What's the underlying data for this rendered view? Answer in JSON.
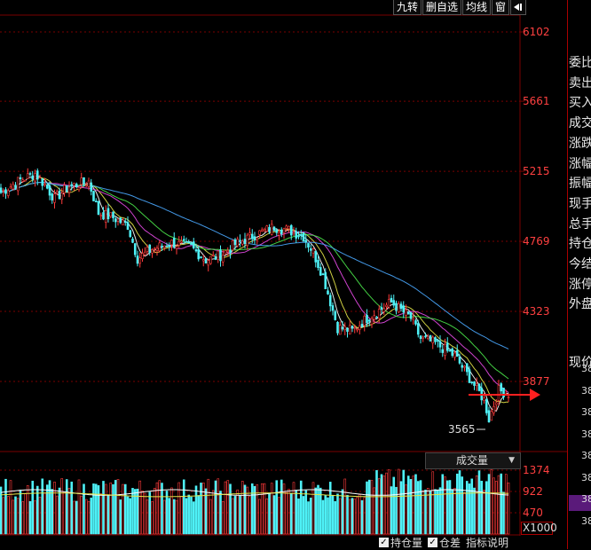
{
  "toolbar": {
    "items": [
      "九转",
      "删自选",
      "均线",
      "窗"
    ],
    "pin_icon": "pin-icon"
  },
  "price_axis": [
    "6102",
    "5661",
    "5215",
    "4769",
    "4323",
    "3877"
  ],
  "low_label": "3565",
  "volume_axis": [
    "1374",
    "922",
    "470"
  ],
  "volume_multiplier": "X1000",
  "volume_selector": {
    "label": "成交量",
    "icon": "dropdown-icon"
  },
  "bottom_bar": {
    "hold": "持仓量",
    "position_diff": "仓差",
    "indicator_help": "指标说明"
  },
  "side_panel": {
    "labels": [
      "委比",
      "卖出",
      "买入",
      "成交",
      "涨跌",
      "涨幅",
      "振幅",
      "现手",
      "总手",
      "持仓",
      "今结",
      "涨停",
      "外盘"
    ],
    "current_price_label": "现价",
    "numbers": [
      "38",
      "38",
      "38",
      "38",
      "38",
      "38",
      "38",
      "38"
    ]
  },
  "colors": {
    "up": "#ff3a3a",
    "down": "#4ef0f6",
    "ma5": "#ffffff",
    "ma10": "#e6e64a",
    "ma20": "#e64ae6",
    "ma30": "#4ae64a",
    "ma60": "#4aa8ff",
    "grid": "#7a0000",
    "arrow": "#ff2020"
  },
  "chart_data": {
    "type": "candlestick",
    "price_axis_ticks": [
      6102,
      5661,
      5215,
      4769,
      4323,
      3877
    ],
    "volume_axis_ticks": [
      1374,
      922,
      470
    ],
    "volume_multiplier": "X1000",
    "min_marker": 3565,
    "series": []
  }
}
